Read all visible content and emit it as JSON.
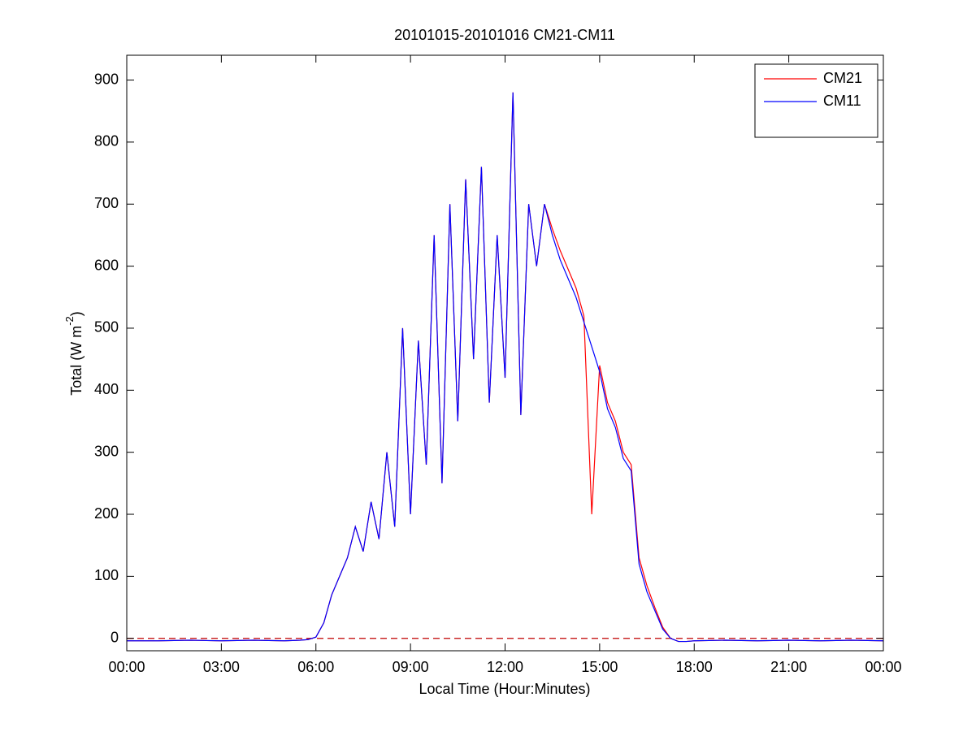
{
  "chart_data": {
    "type": "line",
    "title": "20101015-20101016 CM21-CM11",
    "xlabel": "Local Time (Hour:Minutes)",
    "ylabel": [
      "Total (W m",
      "-2",
      ")"
    ],
    "x": [
      0,
      1,
      2,
      3,
      4,
      5,
      5.5,
      5.75,
      6,
      6.25,
      6.5,
      6.75,
      7,
      7.25,
      7.5,
      7.75,
      8,
      8.25,
      8.5,
      8.75,
      9,
      9.25,
      9.5,
      9.75,
      10,
      10.25,
      10.5,
      10.75,
      11,
      11.25,
      11.5,
      11.75,
      12,
      12.25,
      12.5,
      12.75,
      13,
      13.25,
      13.5,
      13.75,
      14,
      14.25,
      14.5,
      14.75,
      15,
      15.25,
      15.5,
      15.75,
      16,
      16.25,
      16.5,
      16.75,
      17,
      17.25,
      17.5,
      17.75,
      18,
      19,
      20,
      21,
      22,
      23,
      24
    ],
    "series": [
      {
        "name": "CM21",
        "color": "#ff0000",
        "values": [
          -4,
          -4,
          -3,
          -4,
          -3,
          -4,
          -3,
          -2,
          2,
          25,
          70,
          100,
          130,
          180,
          140,
          220,
          160,
          300,
          180,
          500,
          200,
          480,
          280,
          650,
          250,
          700,
          350,
          740,
          450,
          760,
          380,
          650,
          420,
          880,
          360,
          700,
          600,
          700,
          660,
          625,
          595,
          565,
          520,
          200,
          440,
          380,
          350,
          300,
          280,
          130,
          85,
          50,
          18,
          0,
          -5,
          -5,
          -4,
          -3,
          -4,
          -3,
          -4,
          -3,
          -4
        ]
      },
      {
        "name": "CM11",
        "color": "#0000ff",
        "values": [
          -4,
          -4,
          -3,
          -4,
          -3,
          -4,
          -3,
          -2,
          2,
          25,
          70,
          100,
          130,
          180,
          140,
          220,
          160,
          300,
          180,
          500,
          200,
          480,
          280,
          650,
          250,
          700,
          350,
          740,
          450,
          760,
          380,
          650,
          420,
          880,
          360,
          700,
          600,
          700,
          650,
          610,
          580,
          550,
          510,
          470,
          430,
          370,
          340,
          290,
          270,
          120,
          75,
          45,
          15,
          0,
          -5,
          -5,
          -4,
          -3,
          -4,
          -3,
          -4,
          -3,
          -4
        ]
      }
    ],
    "xlim": [
      0,
      24
    ],
    "xticks": [
      {
        "value": 0,
        "label": "00:00"
      },
      {
        "value": 3,
        "label": "03:00"
      },
      {
        "value": 6,
        "label": "06:00"
      },
      {
        "value": 9,
        "label": "09:00"
      },
      {
        "value": 12,
        "label": "12:00"
      },
      {
        "value": 15,
        "label": "15:00"
      },
      {
        "value": 18,
        "label": "18:00"
      },
      {
        "value": 21,
        "label": "21:00"
      },
      {
        "value": 24,
        "label": "00:00"
      }
    ],
    "ylim": [
      -20,
      940
    ],
    "yticks": [
      0,
      100,
      200,
      300,
      400,
      500,
      600,
      700,
      800,
      900
    ],
    "reference_line": {
      "value": 0,
      "color": "#c00000",
      "dashed": true
    },
    "legend": "upper right"
  }
}
